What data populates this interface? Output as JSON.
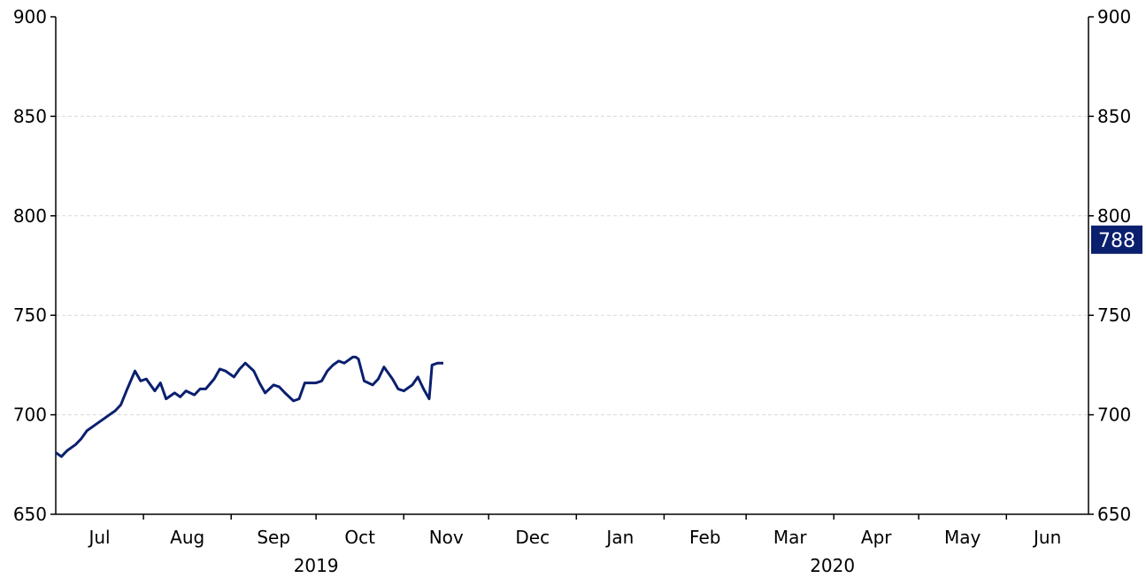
{
  "colors": {
    "series": "#0a1f6e",
    "axis": "#000000",
    "grid": "#d9d9d9",
    "badge_bg": "#0a1f6e",
    "badge_text": "#ffffff"
  },
  "chart_data": {
    "type": "line",
    "title": "",
    "xlabel": "",
    "ylabel": "",
    "ylim": [
      650,
      900
    ],
    "yticks": [
      650,
      700,
      750,
      800,
      850,
      900
    ],
    "ytick_labels": [
      "650",
      "700",
      "750",
      "800",
      "850",
      "900"
    ],
    "right_axis": true,
    "grid": "horizontal dashed",
    "months": [
      "Jul",
      "Aug",
      "Sep",
      "Oct",
      "Nov",
      "Dec",
      "Jan",
      "Feb",
      "Mar",
      "Apr",
      "May",
      "Jun"
    ],
    "years": [
      "2019",
      "2020"
    ],
    "last_value_label": "788",
    "x_start": "2019-07-01",
    "x_end": "2020-06-30",
    "series": [
      {
        "points": [
          [
            "2019-07-01",
            681
          ],
          [
            "2019-07-03",
            679
          ],
          [
            "2019-07-05",
            682
          ],
          [
            "2019-07-08",
            685
          ],
          [
            "2019-07-10",
            688
          ],
          [
            "2019-07-12",
            692
          ],
          [
            "2019-07-15",
            695
          ],
          [
            "2019-07-17",
            697
          ],
          [
            "2019-07-19",
            699
          ],
          [
            "2019-07-22",
            702
          ],
          [
            "2019-07-24",
            705
          ],
          [
            "2019-07-26",
            712
          ],
          [
            "2019-07-29",
            722
          ],
          [
            "2019-07-31",
            717
          ],
          [
            "2019-08-02",
            718
          ],
          [
            "2019-08-05",
            712
          ],
          [
            "2019-08-07",
            716
          ],
          [
            "2019-08-09",
            708
          ],
          [
            "2019-08-12",
            711
          ],
          [
            "2019-08-14",
            709
          ],
          [
            "2019-08-16",
            712
          ],
          [
            "2019-08-19",
            710
          ],
          [
            "2019-08-21",
            713
          ],
          [
            "2019-08-23",
            713
          ],
          [
            "2019-08-26",
            718
          ],
          [
            "2019-08-28",
            723
          ],
          [
            "2019-08-30",
            722
          ],
          [
            "2019-09-02",
            719
          ],
          [
            "2019-09-04",
            723
          ],
          [
            "2019-09-06",
            726
          ],
          [
            "2019-09-09",
            722
          ],
          [
            "2019-09-11",
            716
          ],
          [
            "2019-09-13",
            711
          ],
          [
            "2019-09-16",
            715
          ],
          [
            "2019-09-18",
            714
          ],
          [
            "2019-09-20",
            711
          ],
          [
            "2019-09-23",
            707
          ],
          [
            "2019-09-25",
            708
          ],
          [
            "2019-09-27",
            716
          ],
          [
            "2019-10-01",
            716
          ],
          [
            "2019-10-03",
            717
          ],
          [
            "2019-10-05",
            722
          ],
          [
            "2019-10-07",
            725
          ],
          [
            "2019-10-09",
            727
          ],
          [
            "2019-10-11",
            726
          ],
          [
            "2019-10-14",
            729
          ],
          [
            "2019-10-16",
            728
          ],
          [
            "2019-10-18",
            717
          ],
          [
            "2019-10-21",
            715
          ],
          [
            "2019-10-23",
            718
          ],
          [
            "2019-10-25",
            724
          ],
          [
            "2019-10-28",
            718
          ],
          [
            "2019-10-30",
            713
          ],
          [
            "2019-10-15",
            729
          ],
          [
            "2019-11-01",
            712
          ],
          [
            "2019-11-04",
            715
          ],
          [
            "2019-11-06",
            719
          ],
          [
            "2019-11-08",
            713
          ],
          [
            "2019-11-10",
            708
          ],
          [
            "2019-11-11",
            725
          ],
          [
            "2019-11-13",
            726
          ],
          [
            "2019-11-15",
            726
          ]
        ]
      }
    ]
  }
}
